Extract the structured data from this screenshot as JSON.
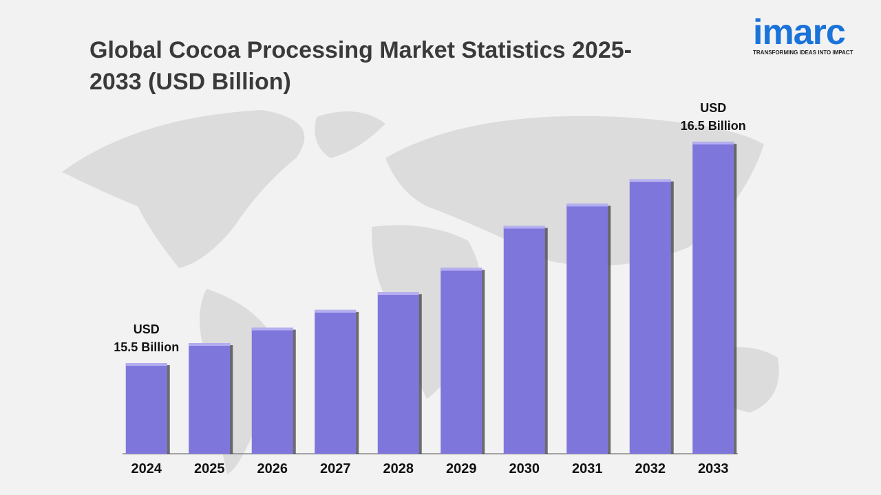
{
  "chart_data": {
    "type": "bar",
    "title": "Global Cocoa Processing Market Statistics 2025-2033 (USD Billion)",
    "categories": [
      "2024",
      "2025",
      "2026",
      "2027",
      "2028",
      "2029",
      "2030",
      "2031",
      "2032",
      "2033"
    ],
    "values": [
      15.5,
      15.59,
      15.66,
      15.74,
      15.82,
      15.93,
      16.12,
      16.22,
      16.33,
      16.5
    ],
    "value_labels": [
      "USD\n15.5 Billion",
      null,
      null,
      null,
      null,
      null,
      null,
      null,
      null,
      "USD\n16.5 Billion"
    ],
    "color": "#7f76dc",
    "ylim": [
      15.09,
      16.6
    ]
  },
  "logo": {
    "name": "imarc",
    "tagline": "TRANSFORMING IDEAS INTO IMPACT"
  }
}
